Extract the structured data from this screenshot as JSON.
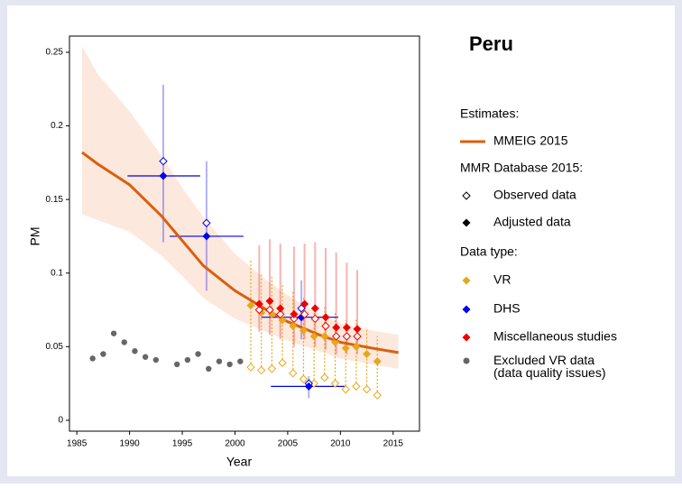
{
  "chart_data": {
    "type": "line",
    "title": "Peru",
    "xlabel": "Year",
    "ylabel": "PM",
    "xlim": [
      1984.3,
      2017.5
    ],
    "ylim": [
      -0.0074,
      0.261
    ],
    "xticks": [
      1985,
      1990,
      1995,
      2000,
      2005,
      2010,
      2015
    ],
    "yticks": [
      0,
      0.05,
      0.1,
      0.15,
      0.2,
      0.25
    ],
    "legend_headings": [
      "Estimates:",
      "MMR Database 2015:",
      "Data type:"
    ],
    "marker_legend": [
      "Observed data",
      "Adjusted data"
    ],
    "estimate": {
      "name": "MMEIG 2015",
      "color": "#d95f0e",
      "band_color": "#fbe0d2",
      "x": [
        1985.5,
        1987,
        1990,
        1993,
        1995,
        1997,
        2000,
        2003,
        2005,
        2008,
        2010,
        2013,
        2015.5
      ],
      "values": [
        0.182,
        0.174,
        0.16,
        0.139,
        0.122,
        0.105,
        0.088,
        0.075,
        0.067,
        0.058,
        0.053,
        0.049,
        0.046
      ],
      "upper": [
        0.254,
        0.235,
        0.21,
        0.18,
        0.158,
        0.138,
        0.113,
        0.095,
        0.085,
        0.072,
        0.066,
        0.061,
        0.058
      ],
      "lower": [
        0.14,
        0.136,
        0.128,
        0.112,
        0.098,
        0.083,
        0.069,
        0.06,
        0.054,
        0.047,
        0.042,
        0.038,
        0.035
      ]
    },
    "series": [
      {
        "name": "VR",
        "color": "#e6a817",
        "x": [
          2001.5,
          2002.5,
          2003.5,
          2004.5,
          2005.5,
          2006.5,
          2007.5,
          2008.5,
          2009.5,
          2010.5,
          2011.5,
          2012.5,
          2013.5
        ],
        "values": [
          0.078,
          0.073,
          0.072,
          0.068,
          0.064,
          0.061,
          0.057,
          0.057,
          0.053,
          0.049,
          0.05,
          0.045,
          0.04
        ],
        "observed": [
          0.036,
          0.034,
          0.035,
          0.039,
          0.032,
          0.028,
          0.025,
          0.029,
          0.025,
          0.021,
          0.023,
          0.021,
          0.017
        ],
        "upper": [
          0.109,
          0.099,
          0.098,
          0.093,
          0.088,
          0.083,
          0.079,
          0.078,
          0.073,
          0.068,
          0.069,
          0.063,
          0.057
        ]
      },
      {
        "name": "DHS",
        "color": "#0000ee",
        "x": [
          1993.2,
          1997.3,
          2006.3,
          2007
        ],
        "x_lo": [
          1989.8,
          1993.8,
          2002.5,
          2003.4
        ],
        "x_hi": [
          1996.7,
          2000.8,
          2009.8,
          2010.5
        ],
        "values": [
          0.166,
          0.125,
          0.07,
          0.023
        ],
        "observed": [
          0.176,
          0.134,
          0.076,
          0.025
        ],
        "lower": [
          0.121,
          0.088,
          0.055,
          0.015
        ],
        "upper": [
          0.228,
          0.176,
          0.095,
          0.03
        ]
      },
      {
        "name": "Miscellaneous studies",
        "color": "#ee0000",
        "x": [
          2002.3,
          2003.3,
          2004.3,
          2005.6,
          2006.6,
          2007.6,
          2008.6,
          2009.6,
          2010.6,
          2011.6
        ],
        "values": [
          0.079,
          0.081,
          0.076,
          0.072,
          0.079,
          0.076,
          0.07,
          0.063,
          0.063,
          0.062
        ],
        "observed": [
          0.075,
          0.075,
          0.072,
          0.069,
          0.072,
          0.069,
          0.064,
          0.057,
          0.057,
          0.057
        ],
        "lower": [
          0.06,
          0.058,
          0.055,
          0.05,
          0.055,
          0.05,
          0.048,
          0.045,
          0.045,
          0.045
        ],
        "upper": [
          0.119,
          0.123,
          0.12,
          0.118,
          0.12,
          0.121,
          0.117,
          0.114,
          0.107,
          0.102
        ]
      },
      {
        "name": "Excluded VR data\n(data quality issues)",
        "color": "#666666",
        "x": [
          1986.5,
          1987.5,
          1988.5,
          1989.5,
          1990.5,
          1991.5,
          1992.5,
          1994.5,
          1995.5,
          1996.5,
          1997.5,
          1998.5,
          1999.5,
          2000.5
        ],
        "values": [
          0.042,
          0.045,
          0.059,
          0.053,
          0.047,
          0.043,
          0.041,
          0.038,
          0.041,
          0.045,
          0.035,
          0.04,
          0.038,
          0.04
        ]
      }
    ]
  }
}
